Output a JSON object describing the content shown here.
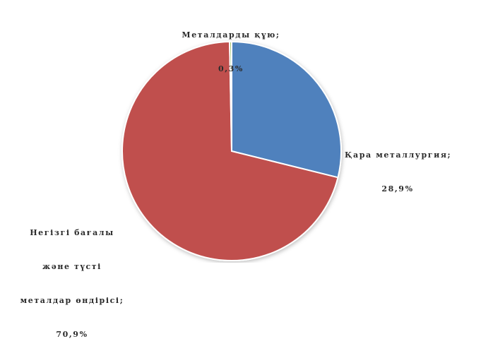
{
  "chart_data": {
    "type": "pie",
    "title": "",
    "start_angle_deg": -90,
    "direction": "clockwise",
    "slices": [
      {
        "label": "Қара металлургия",
        "label_lines": [
          "Қара металлургия;",
          "28,9%"
        ],
        "value": 28.9,
        "value_text": "28,9%",
        "color": "#4f81bd"
      },
      {
        "label": "Негізгі бағалы және түсті металдар өндірісі",
        "label_lines": [
          "Негізгі бағалы",
          "және түсті",
          "металдар өндірісі;",
          "70,9%"
        ],
        "value": 70.9,
        "value_text": "70,9%",
        "color": "#c0504d"
      },
      {
        "label": "Металдарды құю",
        "label_lines": [
          "Металдарды құю;",
          "0,3%"
        ],
        "value": 0.3,
        "value_text": "0,3%",
        "color": "#9bbb59"
      }
    ]
  }
}
